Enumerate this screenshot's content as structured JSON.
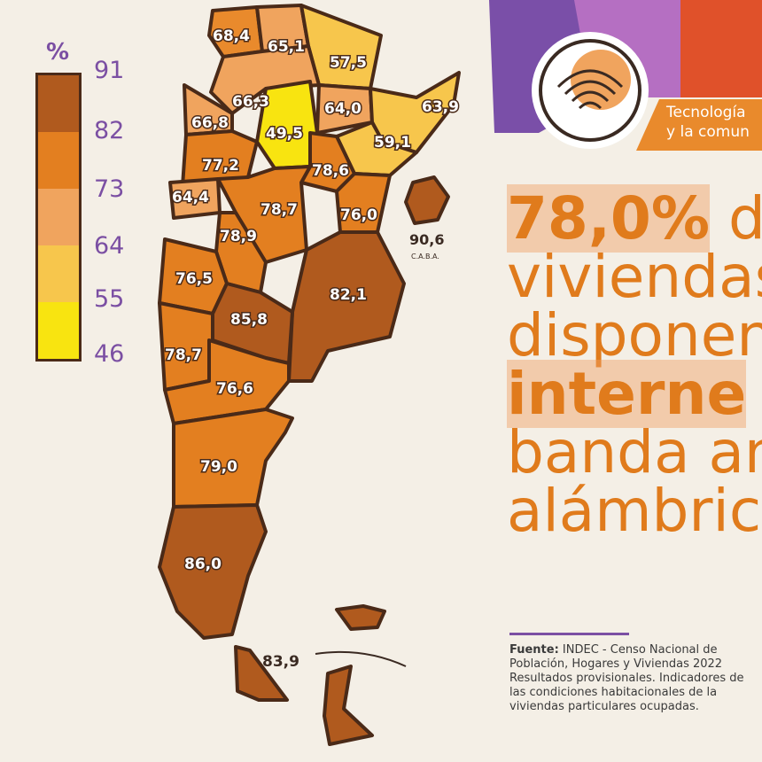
{
  "legend": {
    "unit": "%",
    "ticks": [
      "91",
      "82",
      "73",
      "64",
      "55",
      "46"
    ],
    "colors": [
      "#b05a1e",
      "#e37f20",
      "#f0a45e",
      "#f7c64c",
      "#f8e410"
    ]
  },
  "map": {
    "regions": [
      {
        "value": "68,4",
        "color": "#e98a2c"
      },
      {
        "value": "65,1",
        "color": "#f0a45e"
      },
      {
        "value": "57,5",
        "color": "#f7c64c"
      },
      {
        "value": "66,3",
        "color": "#f0a45e"
      },
      {
        "value": "64,0",
        "color": "#f0a45e"
      },
      {
        "value": "63,9",
        "color": "#f7c64c"
      },
      {
        "value": "49,5",
        "color": "#f8e410"
      },
      {
        "value": "66,8",
        "color": "#f0a45e"
      },
      {
        "value": "59,1",
        "color": "#f7c64c"
      },
      {
        "value": "77,2",
        "color": "#e37f20"
      },
      {
        "value": "78,6",
        "color": "#e37f20"
      },
      {
        "value": "64,4",
        "color": "#f0a45e"
      },
      {
        "value": "78,7",
        "color": "#e37f20"
      },
      {
        "value": "76,0",
        "color": "#e37f20"
      },
      {
        "value": "78,9",
        "color": "#e37f20"
      },
      {
        "value": "76,5",
        "color": "#e37f20"
      },
      {
        "value": "82,1",
        "color": "#b05a1e"
      },
      {
        "value": "85,8",
        "color": "#b05a1e"
      },
      {
        "value": "78,7",
        "color": "#e37f20"
      },
      {
        "value": "76,6",
        "color": "#e37f20"
      },
      {
        "value": "79,0",
        "color": "#e37f20"
      },
      {
        "value": "86,0",
        "color": "#b05a1e"
      },
      {
        "value": "83,9",
        "color": "#b05a1e"
      }
    ],
    "caba": {
      "value": "90,6",
      "label": "C.A.B.A.",
      "color": "#b05a1e"
    }
  },
  "banner": {
    "line1": "Tecnología",
    "line2": "y la comun"
  },
  "headline": {
    "pct": "78,0%",
    "line1_rest": " d",
    "line2": "viviendas",
    "line3": "disponen",
    "line4": "interne",
    "line5": "banda an",
    "line6": "alámbrica"
  },
  "source": {
    "label": "Fuente:",
    "line1": " INDEC - Censo Nacional de",
    "line2": "Población, Hogares y Viviendas 2022",
    "line3": "Resultados provisionales. Indicadores de",
    "line4": "las condiciones habitacionales de la",
    "line5": "viviendas particulares ocupadas."
  }
}
